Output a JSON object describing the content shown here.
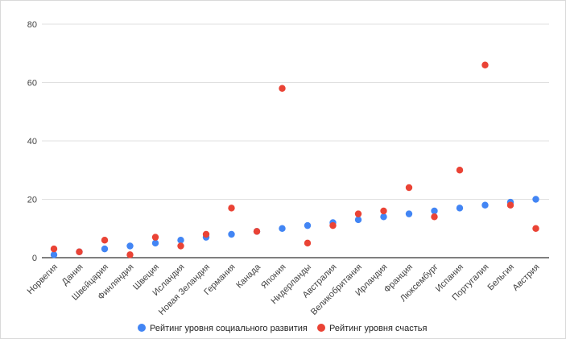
{
  "chart_data": {
    "type": "scatter",
    "title": "",
    "xlabel": "",
    "ylabel": "",
    "ylim": [
      0,
      80
    ],
    "yticks": [
      0,
      20,
      40,
      60,
      80
    ],
    "grid": true,
    "legend_position": "bottom",
    "categories": [
      "Норвегия",
      "Дания",
      "Швейцария",
      "Финляндия",
      "Швеция",
      "Исландия",
      "Новая Зеландия",
      "Германия",
      "Канада",
      "Япония",
      "Нидерланды",
      "Австралия",
      "Великобритания",
      "Ирландия",
      "Франция",
      "Люксембург",
      "Испания",
      "Португалия",
      "Бельгия",
      "Австрия"
    ],
    "series": [
      {
        "name": "Рейтинг уровня социального развития",
        "color": "#4285f4",
        "values": [
          1,
          2,
          3,
          4,
          5,
          6,
          7,
          8,
          9,
          10,
          11,
          12,
          13,
          14,
          15,
          16,
          17,
          18,
          19,
          20
        ]
      },
      {
        "name": "Рейтинг уровня счастья",
        "color": "#ea4335",
        "values": [
          3,
          2,
          6,
          1,
          7,
          4,
          8,
          17,
          9,
          58,
          5,
          11,
          15,
          16,
          24,
          14,
          30,
          66,
          18,
          10
        ]
      }
    ]
  }
}
